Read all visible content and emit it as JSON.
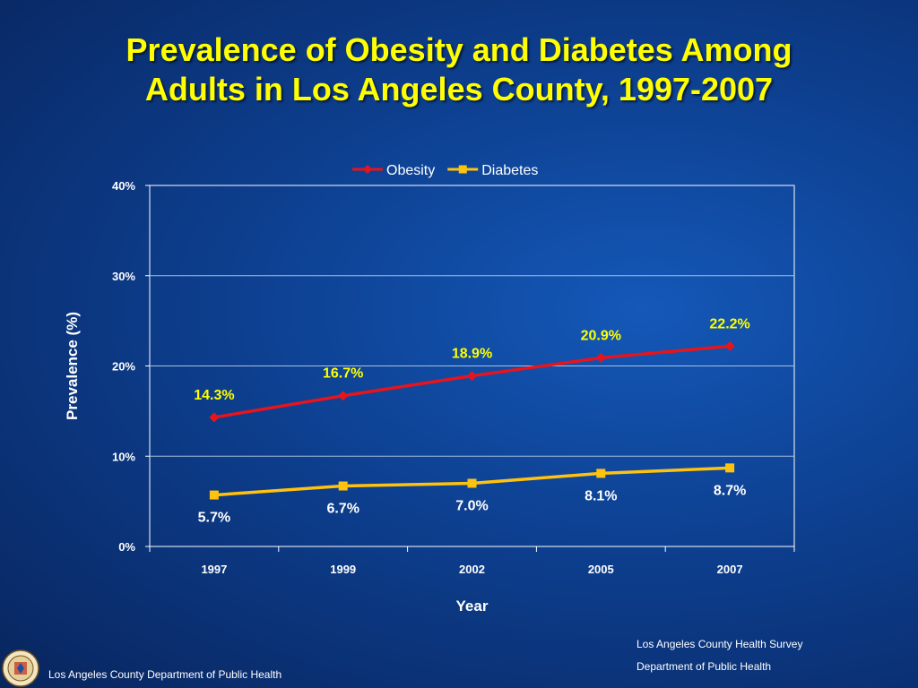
{
  "title_lines": [
    "Prevalence of Obesity and Diabetes Among",
    "Adults in Los Angeles County, 1997-2007"
  ],
  "colors": {
    "title": "#ffff00",
    "obesity": "#e8141c",
    "diabetes": "#ffc20e",
    "obesity_label": "#ffff00",
    "diabetes_label": "#ffffff"
  },
  "chart_data": {
    "type": "line",
    "categories": [
      "1997",
      "1999",
      "2002",
      "2005",
      "2007"
    ],
    "series": [
      {
        "name": "Obesity",
        "values": [
          14.3,
          16.7,
          18.9,
          20.9,
          22.2
        ],
        "labels": [
          "14.3%",
          "16.7%",
          "18.9%",
          "20.9%",
          "22.2%"
        ],
        "marker": "diamond"
      },
      {
        "name": "Diabetes",
        "values": [
          5.7,
          6.7,
          7.0,
          8.1,
          8.7
        ],
        "labels": [
          "5.7%",
          "6.7%",
          "7.0%",
          "8.1%",
          "8.7%"
        ],
        "marker": "square"
      }
    ],
    "xlabel": "Year",
    "ylabel": "Prevalence (%)",
    "ylim": [
      0,
      40
    ],
    "yticks": [
      0,
      10,
      20,
      30,
      40
    ],
    "ytick_labels": [
      "0%",
      "10%",
      "20%",
      "30%",
      "40%"
    ],
    "grid": true,
    "legend_position": "top-center"
  },
  "footer": {
    "department": "Los Angeles County Department of Public Health"
  },
  "source": {
    "line1": "Los Angeles County Health Survey",
    "line2": "Department of Public Health"
  },
  "logo": {
    "icon": "county-seal-icon"
  }
}
